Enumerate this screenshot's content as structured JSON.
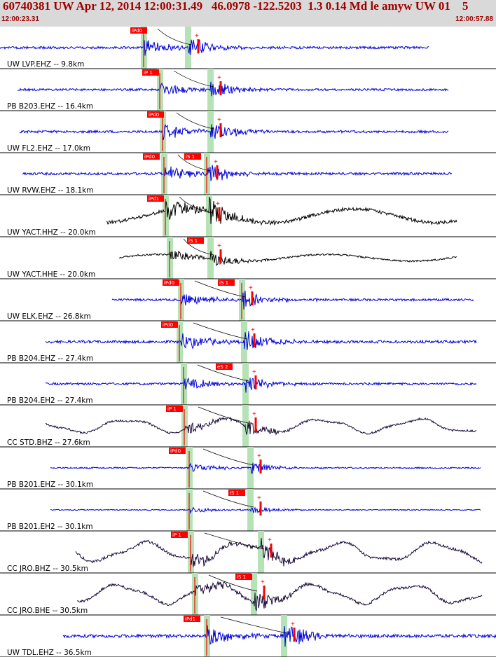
{
  "header": {
    "title": "60740381 UW Apr 12, 2014 12:00:31.49   46.0978 -122.5203  1.3 0.14 Md le amyw UW 01    5",
    "time_start": "12:00:23.31",
    "time_end": "12:00:57.88"
  },
  "colors": {
    "header_bg": "#d9d9d9",
    "header_text": "#a00000",
    "blue_trace": "#0000dd",
    "black_trace": "#000000",
    "purple_trace": "#1a0a3a",
    "pick_red": "#ff0000",
    "window_green": "#b5e3b5"
  },
  "chart_data": {
    "type": "seismogram",
    "time_range": [
      "12:00:23.31",
      "12:00:57.88"
    ],
    "traces": [
      {
        "label": "UW LVP.EHZ -- 9.8km",
        "color": "blue",
        "picks": [
          {
            "label": "iPd0"
          }
        ]
      },
      {
        "label": "PB B203.EHZ -- 16.4km",
        "color": "blue",
        "picks": [
          {
            "label": "iP 1"
          }
        ]
      },
      {
        "label": "UW FL2.EHZ -- 17.0km",
        "color": "blue",
        "picks": [
          {
            "label": "iPd0"
          }
        ]
      },
      {
        "label": "UW RVW.EHZ -- 18.1km",
        "color": "blue",
        "picks": [
          {
            "label": "iPd0"
          },
          {
            "label": "iS 1"
          }
        ]
      },
      {
        "label": "UW YACT.HHZ -- 20.0km",
        "color": "black",
        "picks": [
          {
            "label": "iPd1"
          }
        ]
      },
      {
        "label": "UW YACT.HHE -- 20.0km",
        "color": "black",
        "picks": [
          {
            "label": "iS 1"
          }
        ]
      },
      {
        "label": "UW ELK.EHZ -- 26.8km",
        "color": "blue",
        "picks": [
          {
            "label": "iPd0"
          },
          {
            "label": "iS 1"
          }
        ]
      },
      {
        "label": "PB B204.EHZ -- 27.4km",
        "color": "blue",
        "picks": [
          {
            "label": "iPd0"
          }
        ]
      },
      {
        "label": "PB B204.EH2 -- 27.4km",
        "color": "blue",
        "picks": [
          {
            "label": "eS 2"
          }
        ]
      },
      {
        "label": "CC STD.BHZ -- 27.6km",
        "color": "purple",
        "picks": [
          {
            "label": "iP 1"
          }
        ]
      },
      {
        "label": "PB B201.EHZ -- 30.1km",
        "color": "blue",
        "picks": [
          {
            "label": "iPd0"
          }
        ]
      },
      {
        "label": "PB B201.EH2 -- 30.1km",
        "color": "blue",
        "picks": [
          {
            "label": "iS 1"
          }
        ]
      },
      {
        "label": "CC JRO.BHZ -- 30.5km",
        "color": "purple",
        "picks": [
          {
            "label": "iP 1"
          }
        ]
      },
      {
        "label": "CC JRO.BHE -- 30.5km",
        "color": "purple",
        "picks": [
          {
            "label": "iS 1"
          }
        ]
      },
      {
        "label": "UW TDL.EHZ -- 36.5km",
        "color": "blue",
        "picks": [
          {
            "label": "iPd1"
          }
        ]
      }
    ]
  }
}
